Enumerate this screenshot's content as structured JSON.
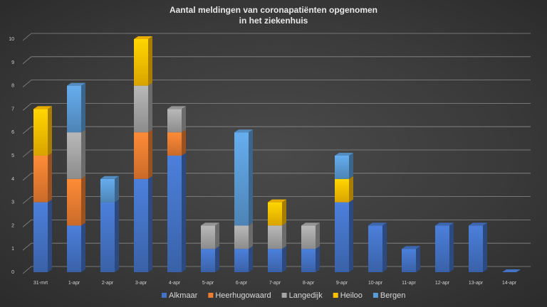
{
  "chart_data": {
    "type": "bar",
    "stacked": true,
    "title": [
      "Aantal meldingen van coronapatiënten opgenomen",
      "in het ziekenhuis"
    ],
    "xlabel": "",
    "ylabel": "",
    "ylim": [
      0,
      10
    ],
    "yticks": [
      0,
      1,
      2,
      3,
      4,
      5,
      6,
      7,
      8,
      9,
      10
    ],
    "grid": true,
    "legend_position": "bottom",
    "categories": [
      "31-mrt",
      "1-apr",
      "2-apr",
      "3-apr",
      "4-apr",
      "5-apr",
      "6-apr",
      "7-apr",
      "8-apr",
      "9-apr",
      "10-apr",
      "11-apr",
      "12-apr",
      "13-apr",
      "14-apr"
    ],
    "series": [
      {
        "name": "Alkmaar",
        "color": "#4472c4",
        "values": [
          3,
          2,
          3,
          4,
          5,
          1,
          1,
          1,
          1,
          3,
          2,
          1,
          2,
          2,
          0
        ]
      },
      {
        "name": "Heerhugowaard",
        "color": "#ed7d31",
        "values": [
          2,
          2,
          0,
          2,
          1,
          0,
          0,
          0,
          0,
          0,
          0,
          0,
          0,
          0,
          0
        ]
      },
      {
        "name": "Langedijk",
        "color": "#a5a5a5",
        "values": [
          0,
          2,
          0,
          2,
          1,
          1,
          1,
          1,
          1,
          0,
          0,
          0,
          0,
          0,
          0
        ]
      },
      {
        "name": "Heiloo",
        "color": "#ffc000",
        "values": [
          2,
          0,
          0,
          2,
          0,
          0,
          0,
          1,
          0,
          1,
          0,
          0,
          0,
          0,
          0
        ]
      },
      {
        "name": "Bergen",
        "color": "#5b9bd5",
        "values": [
          0,
          2,
          1,
          0,
          0,
          0,
          4,
          0,
          0,
          1,
          0,
          0,
          0,
          0,
          0
        ]
      }
    ]
  }
}
